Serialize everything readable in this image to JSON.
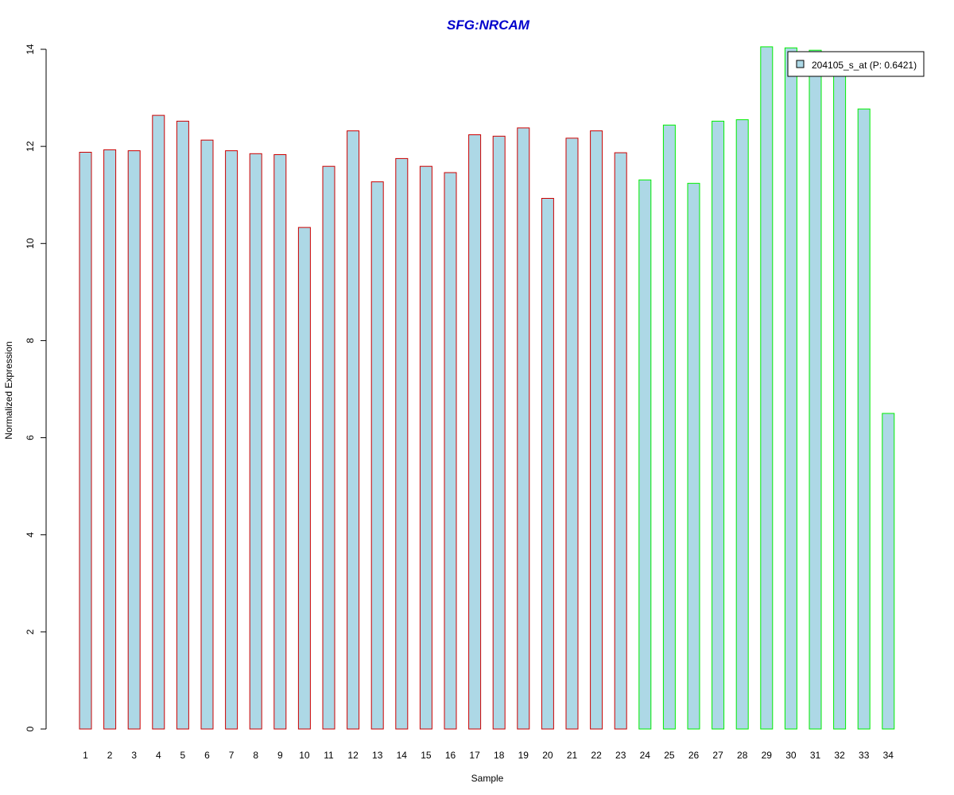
{
  "chart_data": {
    "type": "bar",
    "title": "SFG:NRCAM",
    "xlabel": "Sample",
    "ylabel": "Normalized Expression",
    "ylim": [
      0,
      14
    ],
    "yticks": [
      0,
      2,
      4,
      6,
      8,
      10,
      12,
      14
    ],
    "categories": [
      "1",
      "2",
      "3",
      "4",
      "5",
      "6",
      "7",
      "8",
      "9",
      "10",
      "11",
      "12",
      "13",
      "14",
      "15",
      "16",
      "17",
      "18",
      "19",
      "20",
      "21",
      "22",
      "23",
      "24",
      "25",
      "26",
      "27",
      "28",
      "29",
      "30",
      "31",
      "32",
      "33",
      "34"
    ],
    "series": [
      {
        "name": "204105_s_at (P: 0.6421)",
        "values": [
          11.88,
          11.93,
          11.91,
          12.64,
          12.52,
          12.13,
          11.91,
          11.85,
          11.83,
          10.33,
          11.59,
          12.32,
          11.27,
          11.75,
          11.59,
          11.46,
          12.24,
          12.21,
          12.38,
          10.93,
          12.17,
          12.32,
          11.87,
          11.31,
          12.44,
          11.24,
          12.52,
          12.55,
          14.05,
          14.03,
          13.98,
          13.72,
          12.77,
          6.5
        ]
      }
    ],
    "groups": [
      "red",
      "red",
      "red",
      "red",
      "red",
      "red",
      "red",
      "red",
      "red",
      "red",
      "red",
      "red",
      "red",
      "red",
      "red",
      "red",
      "red",
      "red",
      "red",
      "red",
      "red",
      "red",
      "red",
      "green",
      "green",
      "green",
      "green",
      "green",
      "green",
      "green",
      "green",
      "green",
      "green",
      "green"
    ],
    "grid": false,
    "legend_position": "top-right",
    "colors": {
      "bar_fill": "#add8e6",
      "group_red": "#cc0000",
      "group_green": "#00ee00",
      "title": "#0000cc"
    }
  }
}
